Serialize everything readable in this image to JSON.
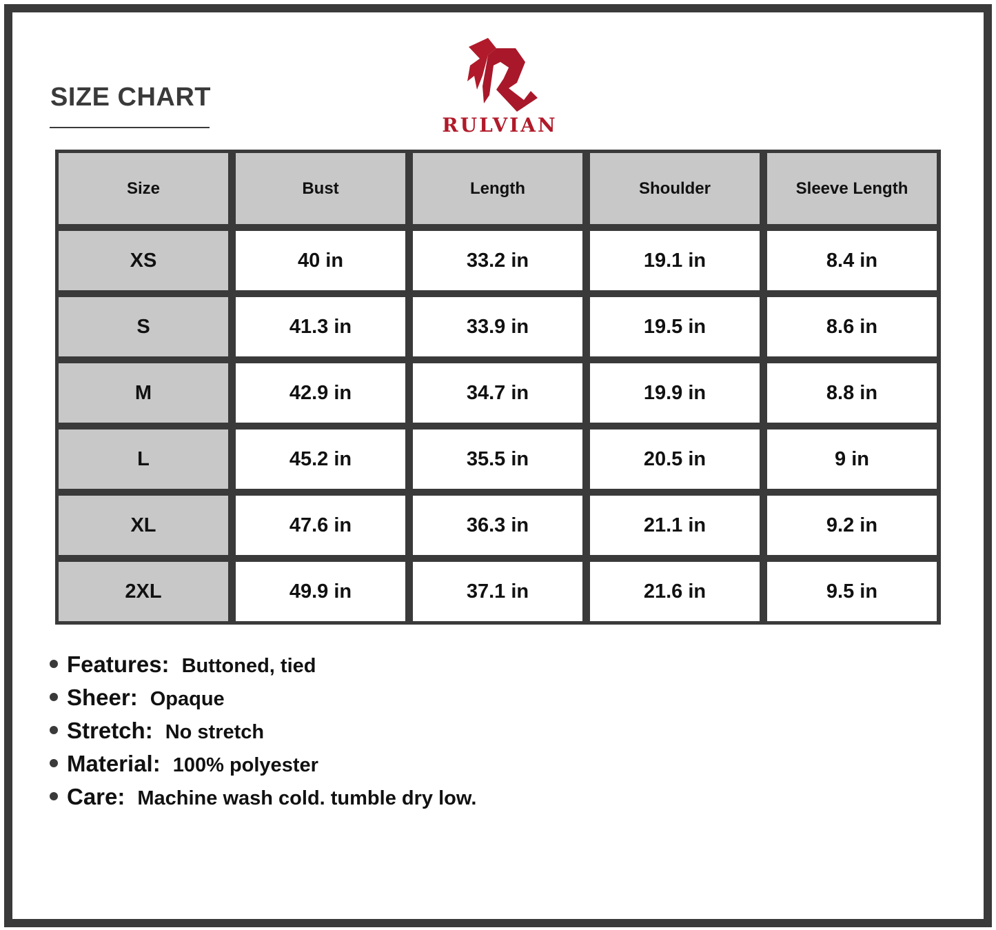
{
  "title": "SIZE CHART",
  "brand": {
    "name": "RULVIAN",
    "color": "#b01a2a"
  },
  "table": {
    "headers": [
      "Size",
      "Bust",
      "Length",
      "Shoulder",
      "Sleeve Length"
    ],
    "rows": [
      [
        "XS",
        "40 in",
        "33.2 in",
        "19.1 in",
        "8.4 in"
      ],
      [
        "S",
        "41.3 in",
        "33.9 in",
        "19.5 in",
        "8.6 in"
      ],
      [
        "M",
        "42.9 in",
        "34.7 in",
        "19.9 in",
        "8.8 in"
      ],
      [
        "L",
        "45.2 in",
        "35.5 in",
        "20.5 in",
        "9 in"
      ],
      [
        "XL",
        "47.6 in",
        "36.3 in",
        "21.1 in",
        "9.2 in"
      ],
      [
        "2XL",
        "49.9 in",
        "37.1 in",
        "21.6 in",
        "9.5 in"
      ]
    ]
  },
  "features": [
    {
      "label": "Features:",
      "value": "Buttoned, tied"
    },
    {
      "label": "Sheer:",
      "value": "Opaque"
    },
    {
      "label": "Stretch:",
      "value": "No stretch"
    },
    {
      "label": "Material:",
      "value": "100% polyester"
    },
    {
      "label": "Care:",
      "value": "Machine wash cold. tumble dry low."
    }
  ]
}
